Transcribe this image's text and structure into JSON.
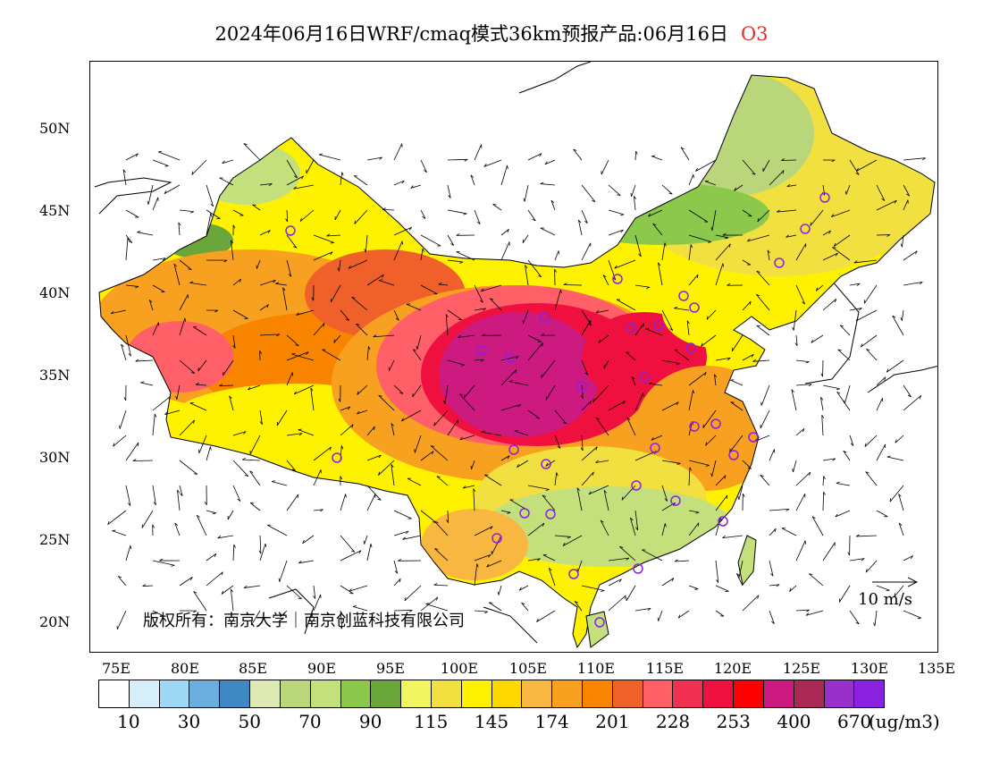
{
  "title": {
    "text": "2024年06月16日WRF/cmaq模式36km预报产品:06月16日",
    "pollutant": "O3"
  },
  "axes": {
    "lat_labels": [
      "50N",
      "45N",
      "40N",
      "35N",
      "30N",
      "25N",
      "20N"
    ],
    "lon_labels": [
      "75E",
      "80E",
      "85E",
      "90E",
      "95E",
      "100E",
      "105E",
      "110E",
      "115E",
      "120E",
      "125E",
      "130E",
      "135E"
    ]
  },
  "colorbar": {
    "colors": [
      "#ffffff",
      "#d7effa",
      "#9fd8f4",
      "#6aaedd",
      "#3f87c2",
      "#dfe9b4",
      "#b9d67a",
      "#c4e07c",
      "#8cc84b",
      "#6ba63a",
      "#f0f560",
      "#f2e040",
      "#fff200",
      "#ffd800",
      "#f8b740",
      "#f8a020",
      "#f88400",
      "#f0602a",
      "#ff6068",
      "#f03050",
      "#f01040",
      "#ff0000",
      "#cc1a80",
      "#aa2a55",
      "#9a30cc",
      "#8a20e0"
    ],
    "labels": [
      "10",
      "30",
      "50",
      "70",
      "90",
      "115",
      "145",
      "174",
      "201",
      "228",
      "253",
      "400",
      "670"
    ],
    "unit": "(ug/m3)"
  },
  "copyright": "版权所有：南京大学｜南京创蓝科技有限公司",
  "wind_legend": "10 m/s"
}
